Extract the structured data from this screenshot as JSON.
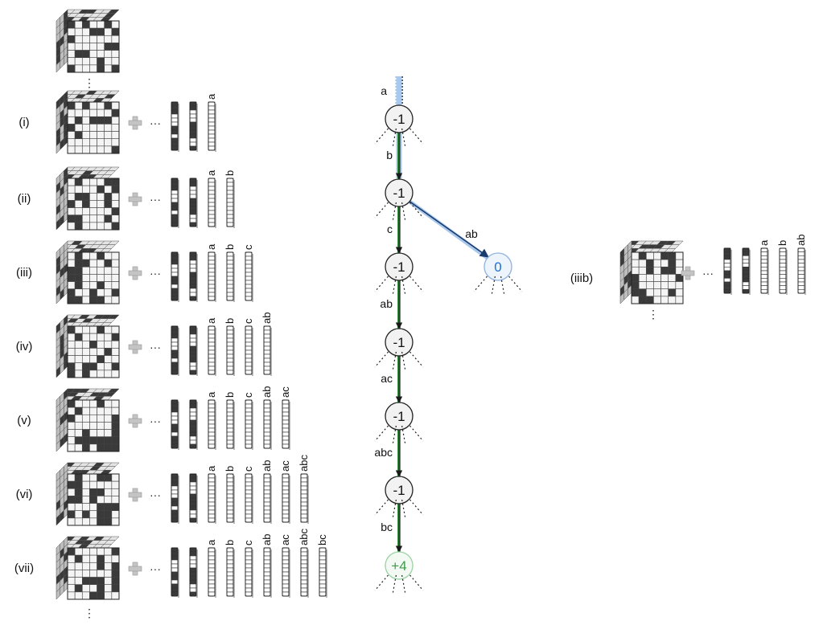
{
  "colors": {
    "dark": "#3a3a3a",
    "mid": "#8c8c8c",
    "light": "#f4f4f4",
    "cubeTop": "#e4e4e4",
    "cubeSide": "#bdbdbd",
    "plus": "#c4c4c4",
    "green": "#3e9a4a",
    "greenFill": "#2f9e47",
    "blue": "#1f6fd6",
    "navy": "#1a3b6b",
    "highlight": "#a9c8ee",
    "nodeFill": "#f2f2f2"
  },
  "rows": [
    {
      "id": "i",
      "label": "(i)",
      "baseColumns": 2,
      "newColumns": [
        "a"
      ],
      "fillColor": "dark",
      "newFill": [
        [
          0.9,
          0.05
        ]
      ]
    },
    {
      "id": "ii",
      "label": "(ii)",
      "baseColumns": 2,
      "newColumns": [
        "a",
        "b"
      ],
      "fillColor": "dark",
      "newFill": [
        [
          0.9,
          0.05
        ],
        [
          0.8,
          0.05
        ]
      ]
    },
    {
      "id": "iii",
      "label": "(iii)",
      "baseColumns": 2,
      "newColumns": [
        "a",
        "b",
        "c"
      ],
      "fillColor": "dark",
      "newFill": [
        [
          0.9,
          0.05
        ],
        [
          0.82,
          0.05
        ],
        [
          0.72,
          0.05
        ]
      ]
    },
    {
      "id": "iv",
      "label": "(iv)",
      "baseColumns": 2,
      "newColumns": [
        "a",
        "b",
        "c",
        "ab"
      ],
      "fillColor": "dark",
      "newFill": [
        [
          0.9,
          0.05
        ],
        [
          0.8,
          0.05
        ],
        [
          0.72,
          0.05
        ],
        [
          0.82,
          0.1
        ]
      ]
    },
    {
      "id": "v",
      "label": "(v)",
      "baseColumns": 2,
      "newColumns": [
        "a",
        "b",
        "c",
        "ab",
        "ac"
      ],
      "fillColor": "dark",
      "newFill": [
        [
          0.9,
          0.05
        ],
        [
          0.8,
          0.05
        ],
        [
          0.72,
          0.05
        ],
        [
          0.82,
          0.1
        ],
        [
          0.82,
          0.08
        ]
      ]
    },
    {
      "id": "vi",
      "label": "(vi)",
      "baseColumns": 2,
      "newColumns": [
        "a",
        "b",
        "c",
        "ab",
        "ac",
        "abc"
      ],
      "fillColor": "dark",
      "newFill": [
        [
          0.9,
          0.05
        ],
        [
          0.8,
          0.05
        ],
        [
          0.72,
          0.05
        ],
        [
          0.82,
          0.1
        ],
        [
          0.82,
          0.08
        ],
        [
          0.55,
          0.4
        ]
      ]
    },
    {
      "id": "vii",
      "label": "(vii)",
      "baseColumns": 2,
      "newColumns": [
        "a",
        "b",
        "c",
        "ab",
        "ac",
        "abc",
        "bc"
      ],
      "fillColor": "greenFill",
      "newFill": [
        [
          0.9,
          0.08
        ],
        [
          0.85,
          0.1
        ],
        [
          0.85,
          0.1
        ],
        [
          0.85,
          0.12
        ],
        [
          0.82,
          0.14
        ],
        [
          0.8,
          0.18
        ],
        [
          0.8,
          0.16
        ]
      ]
    }
  ],
  "sideRow": {
    "id": "iiib",
    "label": "(iiib)",
    "baseColumns": 2,
    "newColumns": [
      "a",
      "b",
      "ab"
    ],
    "fillColor": "blue",
    "newFill": [
      [
        0.85,
        0.1
      ],
      [
        0.75,
        0.1
      ],
      [
        0.78,
        0.2
      ]
    ]
  },
  "tree": {
    "nodes": [
      {
        "id": "n1",
        "value": "-1",
        "kind": "normal"
      },
      {
        "id": "n2",
        "value": "-1",
        "kind": "normal"
      },
      {
        "id": "n3",
        "value": "-1",
        "kind": "normal"
      },
      {
        "id": "n4",
        "value": "-1",
        "kind": "normal"
      },
      {
        "id": "n5",
        "value": "-1",
        "kind": "normal"
      },
      {
        "id": "n6",
        "value": "-1",
        "kind": "normal"
      },
      {
        "id": "n7",
        "value": "+4",
        "kind": "good"
      },
      {
        "id": "nb",
        "value": "0",
        "kind": "branch"
      }
    ],
    "edges": [
      {
        "label": "a"
      },
      {
        "label": "b"
      },
      {
        "label": "c"
      },
      {
        "label": "ab"
      },
      {
        "label": "ac"
      },
      {
        "label": "abc"
      },
      {
        "label": "bc"
      }
    ],
    "branchEdge": {
      "label": "ab"
    }
  },
  "plusSign": "+",
  "ellipsis": "···"
}
